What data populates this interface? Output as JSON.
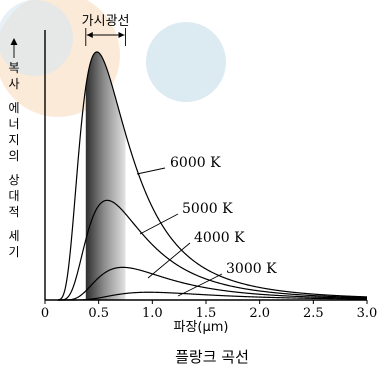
{
  "chart_data": {
    "type": "line",
    "caption": "플랑크 곡선",
    "xlabel": "파장(μm)",
    "ylabel": "복사 에너지의 상대적 세기",
    "xlim": [
      0,
      3.0
    ],
    "ylim": [
      0,
      1.0
    ],
    "x_ticks": [
      "0",
      "0.5",
      "1.0",
      "1.5",
      "2.0",
      "2.5",
      "3.0"
    ],
    "x_tick_values": [
      0,
      0.5,
      1.0,
      1.5,
      2.0,
      2.5,
      3.0
    ],
    "visible_band": {
      "label": "가시광선",
      "from": 0.38,
      "to": 0.75
    },
    "series": [
      {
        "name": "6000 K",
        "temperature": 6000
      },
      {
        "name": "5000 K",
        "temperature": 5000
      },
      {
        "name": "4000 K",
        "temperature": 4000
      },
      {
        "name": "3000 K",
        "temperature": 3000
      }
    ],
    "colors": {
      "background_circle_orange": "#fbe3cc",
      "background_circle_blue": "#d6e6f0",
      "band_dark": "#3a3a3a",
      "band_light": "#d8d8d8"
    }
  }
}
